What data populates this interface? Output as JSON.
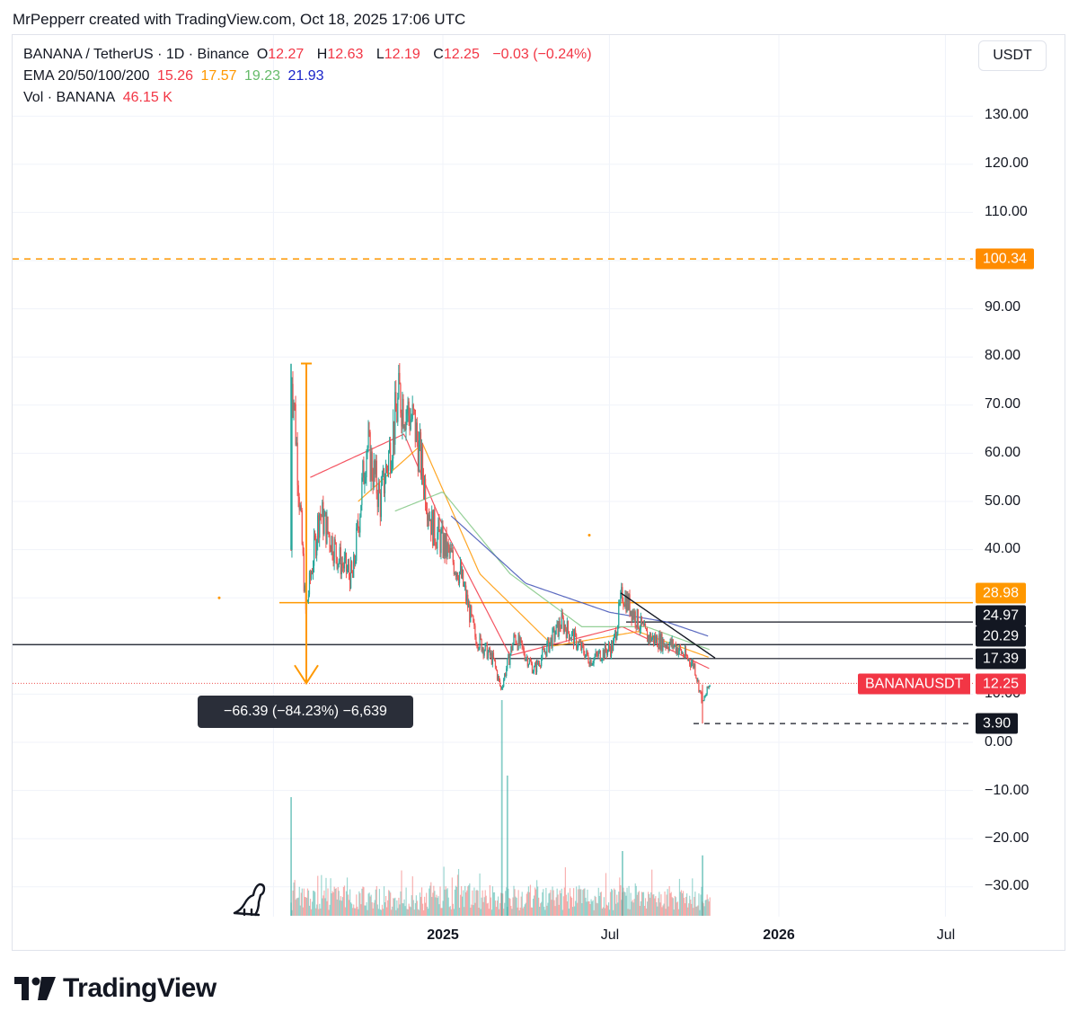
{
  "caption": "MrPepperr created with TradingView.com, Oct 18, 2025 17:06 UTC",
  "legend": {
    "symbol": "BANANA / TetherUS · 1D · Binance",
    "o_label": "O",
    "o": "12.27",
    "h_label": "H",
    "h": "12.63",
    "l_label": "L",
    "l": "12.19",
    "c_label": "C",
    "c": "12.25",
    "change": "−0.03 (−0.24%)",
    "ema_label": "EMA 20/50/100/200",
    "ema20": "15.26",
    "ema50": "17.57",
    "ema100": "19.23",
    "ema200": "21.93",
    "vol_label": "Vol · BANANA",
    "vol": "46.15 K"
  },
  "currency_button": "USDT",
  "y_axis": [
    "130.00",
    "120.00",
    "110.00",
    "100.00",
    "90.00",
    "80.00",
    "70.00",
    "60.00",
    "50.00",
    "40.00",
    "10.00",
    "0.00",
    "−10.00",
    "−20.00",
    "−30.00"
  ],
  "x_axis": [
    "2025",
    "Jul",
    "2026",
    "Jul"
  ],
  "price_tags": {
    "level_100": "100.34",
    "level_29": "28.98",
    "level_25": "24.97",
    "level_20": "20.29",
    "level_17": "17.39",
    "symbol_tag": "BANANAUSDT",
    "last_price": "12.25",
    "level_4": "3.90"
  },
  "measure_label": "−66.39 (−84.23%) −6,639",
  "logo_text": "TradingView",
  "colors": {
    "up": "#26a69a",
    "down": "#ef5350",
    "ema20": "#f23645",
    "ema50": "#ff9800",
    "ema100": "#81c784",
    "ema200": "#2962ff",
    "orange": "#ff9800",
    "text": "#131722"
  },
  "chart_data": {
    "type": "candlestick",
    "symbol": "BANANA / TetherUS",
    "interval": "1D",
    "exchange": "Binance",
    "ylim": [
      -35,
      140
    ],
    "ohlc_last": {
      "open": 12.27,
      "high": 12.63,
      "low": 12.19,
      "close": 12.25
    },
    "price_path": [
      {
        "date": "2024-07-20",
        "price": 40
      },
      {
        "date": "2024-07-21",
        "price": 78
      },
      {
        "date": "2024-07-25",
        "price": 65
      },
      {
        "date": "2024-08-05",
        "price": 27
      },
      {
        "date": "2024-08-20",
        "price": 48
      },
      {
        "date": "2024-09-10",
        "price": 38
      },
      {
        "date": "2024-09-25",
        "price": 34
      },
      {
        "date": "2024-10-10",
        "price": 62
      },
      {
        "date": "2024-10-25",
        "price": 50
      },
      {
        "date": "2024-11-15",
        "price": 72
      },
      {
        "date": "2024-12-01",
        "price": 66
      },
      {
        "date": "2024-12-20",
        "price": 45
      },
      {
        "date": "2025-01-20",
        "price": 35
      },
      {
        "date": "2025-02-05",
        "price": 22
      },
      {
        "date": "2025-02-25",
        "price": 17
      },
      {
        "date": "2025-03-05",
        "price": 11
      },
      {
        "date": "2025-03-20",
        "price": 22
      },
      {
        "date": "2025-04-10",
        "price": 15
      },
      {
        "date": "2025-05-10",
        "price": 25
      },
      {
        "date": "2025-06-10",
        "price": 17
      },
      {
        "date": "2025-07-05",
        "price": 20
      },
      {
        "date": "2025-07-15",
        "price": 31
      },
      {
        "date": "2025-08-10",
        "price": 22
      },
      {
        "date": "2025-09-10",
        "price": 20
      },
      {
        "date": "2025-10-01",
        "price": 16
      },
      {
        "date": "2025-10-10",
        "price": 8
      },
      {
        "date": "2025-10-18",
        "price": 12.25
      }
    ],
    "ema": {
      "ema20": [
        {
          "date": "2024-08-10",
          "price": 55
        },
        {
          "date": "2024-11-20",
          "price": 64
        },
        {
          "date": "2025-01-01",
          "price": 45
        },
        {
          "date": "2025-03-15",
          "price": 18
        },
        {
          "date": "2025-07-15",
          "price": 24
        },
        {
          "date": "2025-10-18",
          "price": 15.26
        }
      ],
      "ema50": [
        {
          "date": "2024-10-01",
          "price": 50
        },
        {
          "date": "2024-12-10",
          "price": 62
        },
        {
          "date": "2025-02-10",
          "price": 35
        },
        {
          "date": "2025-05-01",
          "price": 20
        },
        {
          "date": "2025-08-01",
          "price": 23
        },
        {
          "date": "2025-10-18",
          "price": 17.57
        }
      ],
      "ema100": [
        {
          "date": "2024-11-10",
          "price": 48
        },
        {
          "date": "2025-01-01",
          "price": 52
        },
        {
          "date": "2025-03-15",
          "price": 35
        },
        {
          "date": "2025-06-01",
          "price": 24
        },
        {
          "date": "2025-08-10",
          "price": 24
        },
        {
          "date": "2025-10-18",
          "price": 19.23
        }
      ],
      "ema200": [
        {
          "date": "2025-01-10",
          "price": 47
        },
        {
          "date": "2025-04-01",
          "price": 33
        },
        {
          "date": "2025-07-01",
          "price": 27
        },
        {
          "date": "2025-09-01",
          "price": 25
        },
        {
          "date": "2025-10-18",
          "price": 21.93
        }
      ]
    },
    "horizontal_levels": [
      100.34,
      28.98,
      24.97,
      20.29,
      17.39,
      12.25,
      3.9
    ],
    "trendline": [
      {
        "date": "2025-07-10",
        "price": 31
      },
      {
        "date": "2025-10-18",
        "price": 17.5
      }
    ],
    "measure": {
      "from": 78.64,
      "to": 12.25,
      "change": -66.39,
      "percent": -84.23,
      "ticks": -6639
    },
    "volume_spikes": [
      {
        "date": "2024-07-21",
        "relative": 0.55
      },
      {
        "date": "2025-03-06",
        "relative": 1.0
      },
      {
        "date": "2025-03-12",
        "relative": 0.65
      },
      {
        "date": "2025-07-15",
        "relative": 0.3
      },
      {
        "date": "2025-10-10",
        "relative": 0.28
      }
    ]
  }
}
